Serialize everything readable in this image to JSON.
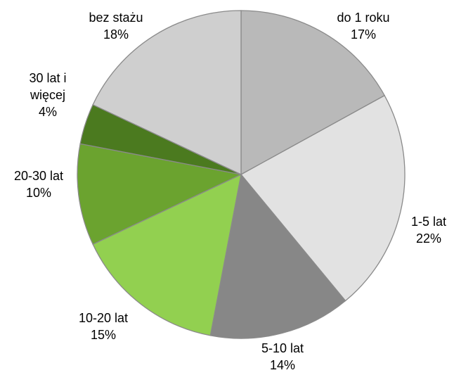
{
  "chart_data": {
    "type": "pie",
    "categories": [
      "do 1 roku",
      "1-5 lat",
      "5-10 lat",
      "10-20 lat",
      "20-30 lat",
      "30 lat i więcej",
      "bez stażu"
    ],
    "values": [
      17,
      22,
      14,
      15,
      10,
      4,
      18
    ],
    "value_labels": [
      "17%",
      "22%",
      "14%",
      "15%",
      "10%",
      "4%",
      "18%"
    ],
    "colors": [
      "#b9b9b9",
      "#e2e2e2",
      "#878787",
      "#92d050",
      "#6ba32f",
      "#4b7a1f",
      "#cfcfcf"
    ]
  }
}
